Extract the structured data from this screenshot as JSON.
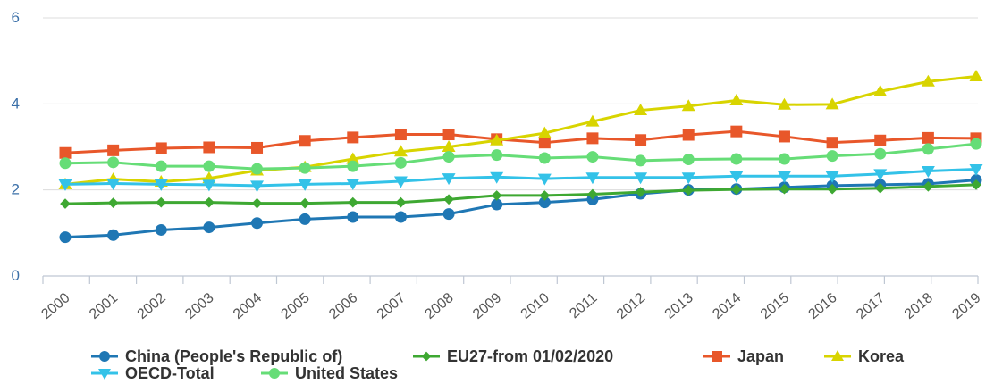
{
  "chart_data": {
    "type": "line",
    "title": "",
    "xlabel": "",
    "ylabel": "",
    "ylim": [
      0,
      6
    ],
    "yticks": [
      0,
      2,
      4,
      6
    ],
    "grid": true,
    "legend_position": "bottom",
    "categories": [
      "2000",
      "2001",
      "2002",
      "2003",
      "2004",
      "2005",
      "2006",
      "2007",
      "2008",
      "2009",
      "2010",
      "2011",
      "2012",
      "2013",
      "2014",
      "2015",
      "2016",
      "2017",
      "2018",
      "2019"
    ],
    "series": [
      {
        "name": "China (People's Republic of)",
        "color": "#1f77b4",
        "marker": "circle",
        "values": [
          0.9,
          0.95,
          1.07,
          1.13,
          1.23,
          1.32,
          1.37,
          1.37,
          1.44,
          1.66,
          1.71,
          1.78,
          1.91,
          2.0,
          2.02,
          2.06,
          2.1,
          2.12,
          2.14,
          2.23
        ]
      },
      {
        "name": "EU27-from 01/02/2020",
        "color": "#3ea832",
        "marker": "diamond",
        "values": [
          1.68,
          1.7,
          1.71,
          1.71,
          1.69,
          1.69,
          1.71,
          1.71,
          1.78,
          1.87,
          1.87,
          1.9,
          1.95,
          1.99,
          2.01,
          2.02,
          2.02,
          2.04,
          2.08,
          2.12
        ]
      },
      {
        "name": "Japan",
        "color": "#e8572a",
        "marker": "square",
        "values": [
          2.86,
          2.92,
          2.97,
          2.99,
          2.98,
          3.14,
          3.22,
          3.29,
          3.29,
          3.18,
          3.1,
          3.2,
          3.16,
          3.28,
          3.36,
          3.24,
          3.1,
          3.15,
          3.21,
          3.2
        ]
      },
      {
        "name": "Korea",
        "color": "#d8d400",
        "marker": "triangle-up",
        "values": [
          2.13,
          2.25,
          2.19,
          2.27,
          2.45,
          2.53,
          2.72,
          2.89,
          3.0,
          3.15,
          3.32,
          3.59,
          3.85,
          3.95,
          4.08,
          3.98,
          3.99,
          4.29,
          4.52,
          4.64
        ]
      },
      {
        "name": "OECD-Total",
        "color": "#33c2e8",
        "marker": "triangle-down",
        "values": [
          2.13,
          2.15,
          2.13,
          2.12,
          2.1,
          2.13,
          2.15,
          2.2,
          2.27,
          2.3,
          2.26,
          2.29,
          2.29,
          2.29,
          2.32,
          2.32,
          2.32,
          2.37,
          2.44,
          2.48
        ]
      },
      {
        "name": "United States",
        "color": "#66dd77",
        "marker": "circle",
        "values": [
          2.62,
          2.64,
          2.55,
          2.55,
          2.49,
          2.51,
          2.55,
          2.63,
          2.77,
          2.81,
          2.74,
          2.77,
          2.68,
          2.71,
          2.72,
          2.72,
          2.79,
          2.84,
          2.95,
          3.07
        ]
      }
    ]
  }
}
